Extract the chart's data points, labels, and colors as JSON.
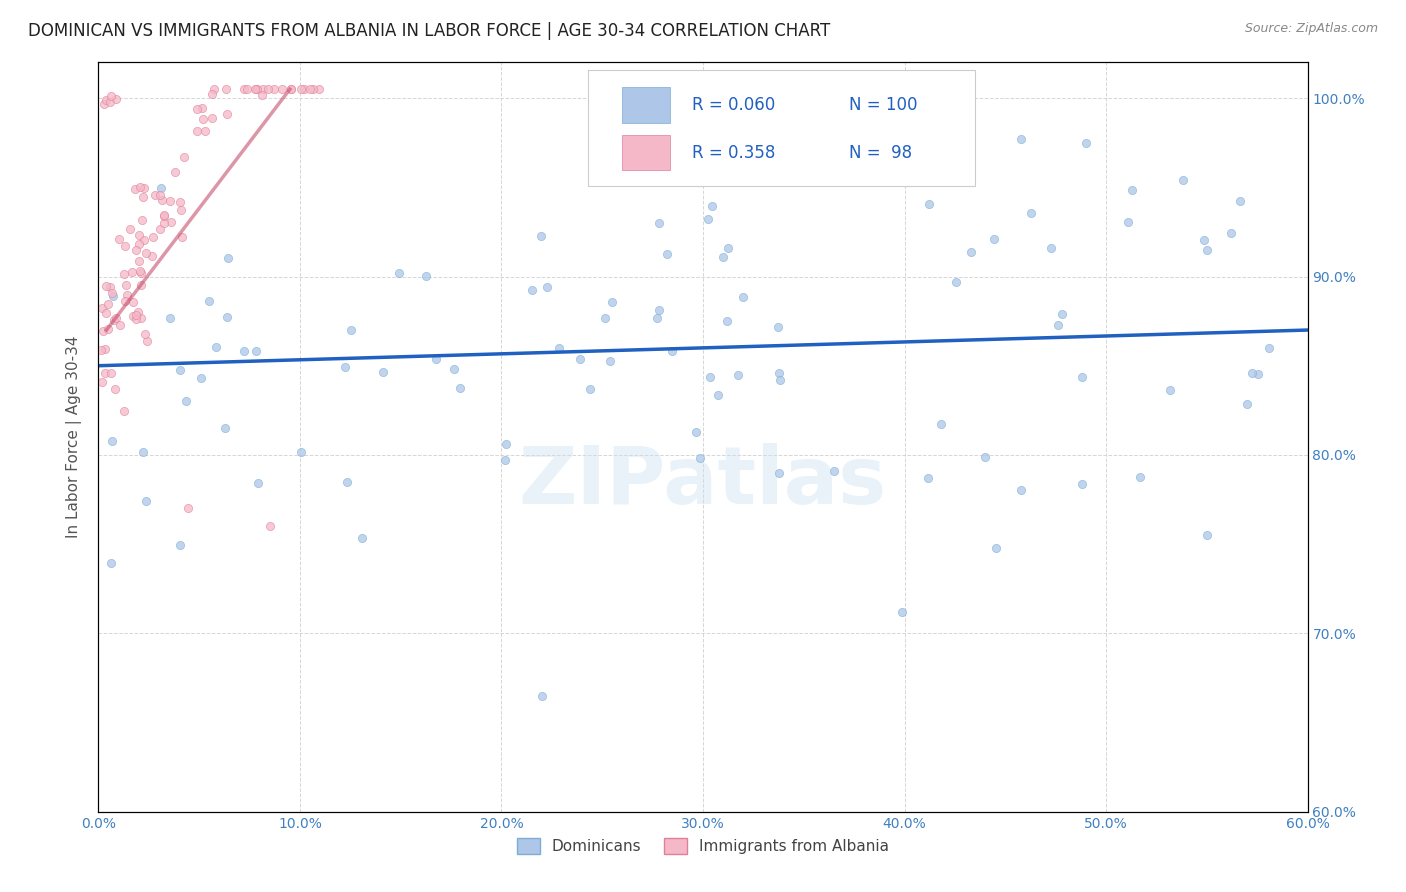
{
  "title": "DOMINICAN VS IMMIGRANTS FROM ALBANIA IN LABOR FORCE | AGE 30-34 CORRELATION CHART",
  "source": "Source: ZipAtlas.com",
  "xlabel_ticks": [
    "0.0%",
    "10.0%",
    "20.0%",
    "30.0%",
    "40.0%",
    "50.0%",
    "60.0%"
  ],
  "ylabel_ticks": [
    "60.0%",
    "70.0%",
    "80.0%",
    "90.0%",
    "100.0%"
  ],
  "ylabel_label": "In Labor Force | Age 30-34",
  "legend_entries": [
    {
      "label": "Dominicans",
      "color": "#aec6e8",
      "R": "0.060",
      "N": "100"
    },
    {
      "label": "Immigrants from Albania",
      "color": "#f4b8c8",
      "R": "0.358",
      "N": "98"
    }
  ],
  "watermark": "ZIPatlas",
  "blue_color": "#aec6e8",
  "blue_edge": "#7aafd4",
  "pink_color": "#f4b8c8",
  "pink_edge": "#e08098",
  "line_blue_color": "#2060c0",
  "line_pink_color": "#c04060",
  "line_width": 2.5,
  "grid_color": "#cccccc",
  "background_color": "#ffffff",
  "title_fontsize": 12,
  "axis_label_fontsize": 11,
  "tick_fontsize": 10,
  "tick_color": "#4080c0",
  "legend_color": "#2060c0",
  "xlim": [
    0.0,
    0.6
  ],
  "ylim": [
    0.6,
    1.02
  ],
  "scatter_size": 35,
  "scatter_alpha": 0.75
}
